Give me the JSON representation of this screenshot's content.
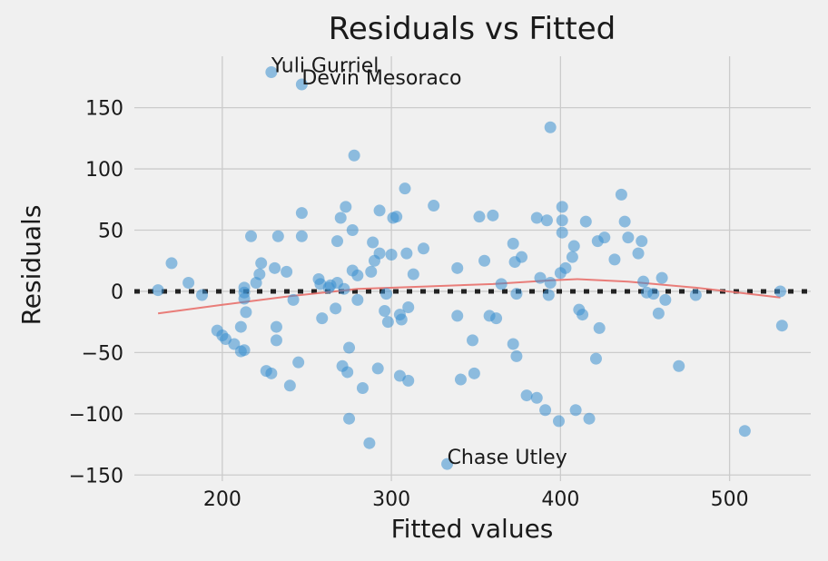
{
  "chart_data": {
    "type": "scatter",
    "title": "Residuals vs Fitted",
    "xlabel": "Fitted values",
    "ylabel": "Residuals",
    "xlim": [
      148,
      548
    ],
    "ylim": [
      -155,
      192
    ],
    "xticks": [
      200,
      300,
      400,
      500
    ],
    "yticks": [
      -150,
      -100,
      -50,
      0,
      50,
      100,
      150
    ],
    "grid": true,
    "colors": {
      "background": "#f0f0f0",
      "points": "#3a8fd0",
      "smooth_line": "#e8706c",
      "zero_line": "#222222",
      "grid": "#cbcbcb"
    },
    "reference_line": {
      "y": 0,
      "style": "dotted"
    },
    "points": [
      [
        162,
        1
      ],
      [
        170,
        23
      ],
      [
        180,
        7
      ],
      [
        188,
        -3
      ],
      [
        197,
        -32
      ],
      [
        200,
        -36
      ],
      [
        202,
        -39
      ],
      [
        207,
        -43
      ],
      [
        211,
        -29
      ],
      [
        211,
        -49
      ],
      [
        213,
        -48
      ],
      [
        213,
        3
      ],
      [
        213,
        -1
      ],
      [
        213,
        -6
      ],
      [
        214,
        -17
      ],
      [
        217,
        45
      ],
      [
        220,
        7
      ],
      [
        222,
        14
      ],
      [
        223,
        23
      ],
      [
        226,
        -65
      ],
      [
        229,
        -67
      ],
      [
        229,
        179
      ],
      [
        231,
        19
      ],
      [
        232,
        -29
      ],
      [
        232,
        -40
      ],
      [
        233,
        45
      ],
      [
        238,
        16
      ],
      [
        240,
        -77
      ],
      [
        242,
        -7
      ],
      [
        245,
        -58
      ],
      [
        247,
        45
      ],
      [
        247,
        64
      ],
      [
        247,
        169
      ],
      [
        257,
        10
      ],
      [
        258,
        6
      ],
      [
        259,
        -22
      ],
      [
        263,
        3
      ],
      [
        264,
        5
      ],
      [
        267,
        -14
      ],
      [
        268,
        7
      ],
      [
        268,
        41
      ],
      [
        270,
        60
      ],
      [
        271,
        -61
      ],
      [
        272,
        2
      ],
      [
        273,
        69
      ],
      [
        274,
        -66
      ],
      [
        275,
        -104
      ],
      [
        275,
        -46
      ],
      [
        277,
        50
      ],
      [
        277,
        17
      ],
      [
        278,
        111
      ],
      [
        280,
        -7
      ],
      [
        280,
        13
      ],
      [
        283,
        -79
      ],
      [
        287,
        -124
      ],
      [
        288,
        16
      ],
      [
        289,
        40
      ],
      [
        290,
        25
      ],
      [
        292,
        -63
      ],
      [
        293,
        66
      ],
      [
        293,
        31
      ],
      [
        296,
        -16
      ],
      [
        297,
        -2
      ],
      [
        298,
        -25
      ],
      [
        300,
        30
      ],
      [
        301,
        60
      ],
      [
        303,
        61
      ],
      [
        305,
        -19
      ],
      [
        305,
        -69
      ],
      [
        306,
        -23
      ],
      [
        308,
        84
      ],
      [
        309,
        31
      ],
      [
        310,
        -73
      ],
      [
        310,
        -13
      ],
      [
        313,
        14
      ],
      [
        319,
        35
      ],
      [
        325,
        70
      ],
      [
        333,
        -141
      ],
      [
        339,
        19
      ],
      [
        339,
        -20
      ],
      [
        341,
        -72
      ],
      [
        348,
        -40
      ],
      [
        349,
        -67
      ],
      [
        352,
        61
      ],
      [
        355,
        25
      ],
      [
        358,
        -20
      ],
      [
        360,
        62
      ],
      [
        362,
        -22
      ],
      [
        365,
        6
      ],
      [
        372,
        39
      ],
      [
        372,
        -43
      ],
      [
        373,
        24
      ],
      [
        374,
        -53
      ],
      [
        374,
        -2
      ],
      [
        377,
        28
      ],
      [
        380,
        -85
      ],
      [
        386,
        -87
      ],
      [
        386,
        60
      ],
      [
        388,
        11
      ],
      [
        391,
        -97
      ],
      [
        392,
        58
      ],
      [
        393,
        -3
      ],
      [
        394,
        134
      ],
      [
        394,
        7
      ],
      [
        399,
        -106
      ],
      [
        400,
        15
      ],
      [
        401,
        69
      ],
      [
        401,
        48
      ],
      [
        401,
        58
      ],
      [
        403,
        19
      ],
      [
        407,
        28
      ],
      [
        408,
        37
      ],
      [
        409,
        -97
      ],
      [
        411,
        -15
      ],
      [
        413,
        -19
      ],
      [
        415,
        57
      ],
      [
        417,
        -104
      ],
      [
        421,
        -55
      ],
      [
        422,
        41
      ],
      [
        423,
        -30
      ],
      [
        426,
        44
      ],
      [
        432,
        26
      ],
      [
        436,
        79
      ],
      [
        438,
        57
      ],
      [
        440,
        44
      ],
      [
        446,
        31
      ],
      [
        448,
        41
      ],
      [
        449,
        8
      ],
      [
        451,
        -1
      ],
      [
        455,
        -2
      ],
      [
        458,
        -18
      ],
      [
        460,
        11
      ],
      [
        462,
        -7
      ],
      [
        470,
        -61
      ],
      [
        480,
        -3
      ],
      [
        509,
        -114
      ],
      [
        530,
        0
      ],
      [
        531,
        -28
      ]
    ],
    "smooth_line": [
      [
        162,
        -18
      ],
      [
        200,
        -11
      ],
      [
        240,
        -4
      ],
      [
        280,
        2
      ],
      [
        320,
        4
      ],
      [
        360,
        6
      ],
      [
        395,
        9
      ],
      [
        410,
        10
      ],
      [
        440,
        8
      ],
      [
        480,
        3
      ],
      [
        530,
        -5
      ]
    ],
    "annotations": [
      {
        "text": "Yuli Gurriel",
        "x": 229,
        "y": 179
      },
      {
        "text": "Devin Mesoraco",
        "x": 247,
        "y": 169
      },
      {
        "text": "Chase Utley",
        "x": 333,
        "y": -141
      }
    ]
  }
}
